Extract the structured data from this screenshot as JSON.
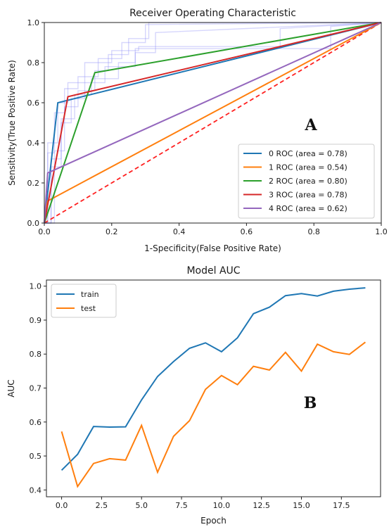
{
  "chart_data": [
    {
      "type": "line",
      "title": "Receiver Operating Characteristic",
      "xlabel": "1-Specificity(False Positive Rate)",
      "ylabel": "Sensitivity(True Positive Rate)",
      "xlim": [
        0,
        1
      ],
      "ylim": [
        0,
        1
      ],
      "xticks": [
        "0.0",
        "0.2",
        "0.4",
        "0.6",
        "0.8",
        "1.0"
      ],
      "yticks": [
        "0.0",
        "0.2",
        "0.4",
        "0.6",
        "0.8",
        "1.0"
      ],
      "grid": false,
      "legend_position": "lower-right",
      "panel_label": "A",
      "series": [
        {
          "name": "0 ROC (area = 0.78)",
          "color": "#1f77b4",
          "x": [
            0,
            0.04,
            1
          ],
          "y": [
            0,
            0.6,
            1
          ]
        },
        {
          "name": "1 ROC (area = 0.54)",
          "color": "#ff7f0e",
          "x": [
            0,
            0.01,
            1
          ],
          "y": [
            0,
            0.11,
            1
          ]
        },
        {
          "name": "2 ROC (area = 0.80)",
          "color": "#2ca02c",
          "x": [
            0,
            0.15,
            1
          ],
          "y": [
            0,
            0.75,
            1
          ]
        },
        {
          "name": "3 ROC (area = 0.78)",
          "color": "#d62728",
          "x": [
            0,
            0.07,
            1
          ],
          "y": [
            0,
            0.63,
            1
          ]
        },
        {
          "name": "4 ROC (area = 0.62)",
          "color": "#9467bd",
          "x": [
            0,
            0.01,
            1
          ],
          "y": [
            0,
            0.25,
            1
          ]
        }
      ],
      "diagonal": {
        "color": "#ff2020",
        "style": "dashed",
        "x": [
          0,
          1
        ],
        "y": [
          0,
          1
        ]
      },
      "background_curves": {
        "color": "#8a8af5",
        "curves": [
          {
            "x": [
              0,
              0.01,
              0.01,
              0.03,
              0.03,
              0.06,
              0.06,
              0.1,
              0.1,
              0.16,
              0.16,
              0.23,
              0.23,
              0.3,
              0.3,
              1
            ],
            "y": [
              0,
              0,
              0.35,
              0.35,
              0.55,
              0.55,
              0.67,
              0.67,
              0.73,
              0.73,
              0.82,
              0.82,
              0.9,
              0.9,
              0.99,
              1
            ]
          },
          {
            "x": [
              0,
              0.02,
              0.02,
              0.05,
              0.05,
              0.08,
              0.08,
              0.12,
              0.12,
              0.18,
              0.18,
              0.27,
              0.27,
              0.33,
              0.33,
              1
            ],
            "y": [
              0,
              0,
              0.28,
              0.28,
              0.5,
              0.5,
              0.62,
              0.62,
              0.7,
              0.7,
              0.78,
              0.78,
              0.85,
              0.85,
              0.95,
              1
            ]
          },
          {
            "x": [
              0,
              0.01,
              0.01,
              0.04,
              0.04,
              0.07,
              0.07,
              0.12,
              0.12,
              0.2,
              0.2,
              0.28,
              0.28,
              0.7,
              0.7,
              1
            ],
            "y": [
              0,
              0,
              0.4,
              0.4,
              0.6,
              0.6,
              0.7,
              0.7,
              0.8,
              0.8,
              0.86,
              0.86,
              0.88,
              0.88,
              0.97,
              1
            ]
          },
          {
            "x": [
              0,
              0.02,
              0.02,
              0.05,
              0.05,
              0.09,
              0.09,
              0.14,
              0.14,
              0.22,
              0.22,
              0.27,
              0.27,
              0.85,
              0.85,
              1
            ],
            "y": [
              0,
              0,
              0.32,
              0.32,
              0.52,
              0.52,
              0.64,
              0.64,
              0.72,
              0.72,
              0.8,
              0.8,
              0.87,
              0.87,
              0.98,
              1
            ]
          },
          {
            "x": [
              0,
              0.03,
              0.03,
              0.06,
              0.06,
              0.1,
              0.1,
              0.15,
              0.15,
              0.19,
              0.19,
              0.25,
              0.25,
              0.31,
              0.31,
              1
            ],
            "y": [
              0,
              0,
              0.36,
              0.36,
              0.58,
              0.58,
              0.66,
              0.66,
              0.76,
              0.76,
              0.84,
              0.84,
              0.92,
              0.92,
              1,
              1
            ]
          }
        ]
      }
    },
    {
      "type": "line",
      "title": "Model AUC",
      "xlabel": "Epoch",
      "ylabel": "AUC",
      "xlim": [
        -0.95,
        19.95
      ],
      "ylim": [
        0.38,
        1.018
      ],
      "xticks": [
        "0.0",
        "2.5",
        "5.0",
        "7.5",
        "10.0",
        "12.5",
        "15.0",
        "17.5"
      ],
      "yticks": [
        "0.4",
        "0.5",
        "0.6",
        "0.7",
        "0.8",
        "0.9",
        "1.0"
      ],
      "grid": false,
      "legend_position": "upper-left",
      "panel_label": "B",
      "series": [
        {
          "name": "train",
          "color": "#1f77b4",
          "x": [
            0,
            1,
            2,
            3,
            4,
            5,
            6,
            7,
            8,
            9,
            10,
            11,
            12,
            13,
            14,
            15,
            16,
            17,
            18,
            19
          ],
          "y": [
            0.458,
            0.505,
            0.587,
            0.585,
            0.586,
            0.665,
            0.734,
            0.778,
            0.817,
            0.833,
            0.807,
            0.848,
            0.919,
            0.938,
            0.972,
            0.978,
            0.971,
            0.985,
            0.991,
            0.995
          ]
        },
        {
          "name": "test",
          "color": "#ff7f0e",
          "x": [
            0,
            1,
            2,
            3,
            4,
            5,
            6,
            7,
            8,
            9,
            10,
            11,
            12,
            13,
            14,
            15,
            16,
            17,
            18,
            19
          ],
          "y": [
            0.572,
            0.41,
            0.478,
            0.492,
            0.488,
            0.59,
            0.452,
            0.558,
            0.604,
            0.696,
            0.737,
            0.71,
            0.764,
            0.753,
            0.805,
            0.75,
            0.829,
            0.807,
            0.799,
            0.835
          ]
        }
      ]
    }
  ]
}
